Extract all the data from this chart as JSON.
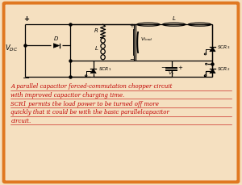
{
  "bg_color": "#f5e0c0",
  "border_color": "#e07820",
  "cc": "#000000",
  "text_color": "#c00000",
  "caption": [
    "A parallel capacitor forced-commutation chopper circuit",
    "with improved capacitor charging time.",
    "SCR1 permits the load power to be turned off more",
    "quickly that it could be with the basic parallelcapacitor",
    "circuit."
  ],
  "figsize": [
    3.0,
    2.29
  ],
  "dpi": 100
}
